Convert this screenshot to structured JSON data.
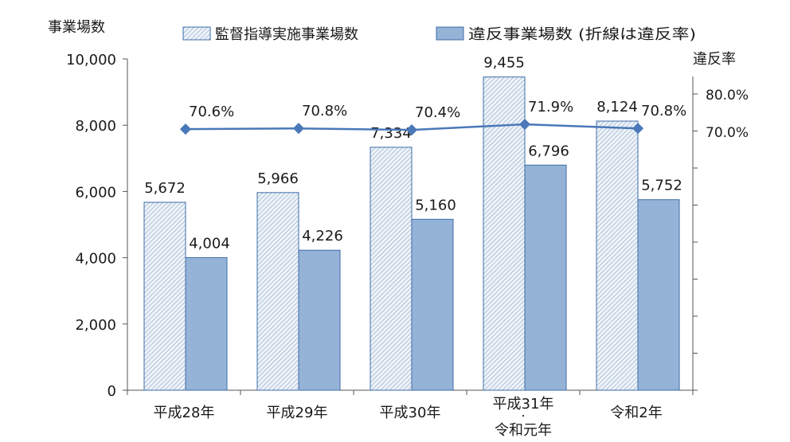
{
  "chart_data": {
    "type": "bar",
    "left_axis_title": "事業場数",
    "right_axis_title": "違反率",
    "categories": [
      "平成28年",
      "平成29年",
      "平成30年",
      "平成31年\n・\n令和元年",
      "令和2年"
    ],
    "series": [
      {
        "name": "監督指導実施事業場数",
        "kind": "bar",
        "pattern": "hatched",
        "values": [
          5672,
          5966,
          7334,
          9455,
          8124
        ],
        "labels": [
          "5,672",
          "5,966",
          "7,334",
          "9,455",
          "8,124"
        ]
      },
      {
        "name": "違反事業場数 (折線は違反率)",
        "kind": "bar",
        "values": [
          4004,
          4226,
          5160,
          6796,
          5752
        ],
        "labels": [
          "4,004",
          "4,226",
          "5,160",
          "6,796",
          "5,752"
        ]
      },
      {
        "name": "違反率",
        "kind": "line",
        "axis": "right",
        "values": [
          70.6,
          70.8,
          70.4,
          71.9,
          70.8
        ],
        "labels": [
          "70.6%",
          "70.8%",
          "70.4%",
          "71.9%",
          "70.8%"
        ]
      }
    ],
    "y_left": {
      "min": 0,
      "max": 10000,
      "ticks": [
        0,
        2000,
        4000,
        6000,
        8000,
        10000
      ],
      "tick_labels": [
        "0",
        "2,000",
        "4,000",
        "6,000",
        "8,000",
        "10,000"
      ]
    },
    "y_right": {
      "tick_labels": [
        "80.0%",
        "70.0%"
      ],
      "tick_values": [
        80,
        70
      ]
    },
    "legend_position": "top",
    "grid": false,
    "colors": {
      "bar_solid": "#95b3d7",
      "bar_solid_edge": "#3e6da8",
      "hatch_bg": "#eef3f9",
      "hatch_line": "#9fb6d0",
      "hatch_edge": "#3e6da8",
      "line": "#4a78b8",
      "axis": "#555555"
    }
  }
}
